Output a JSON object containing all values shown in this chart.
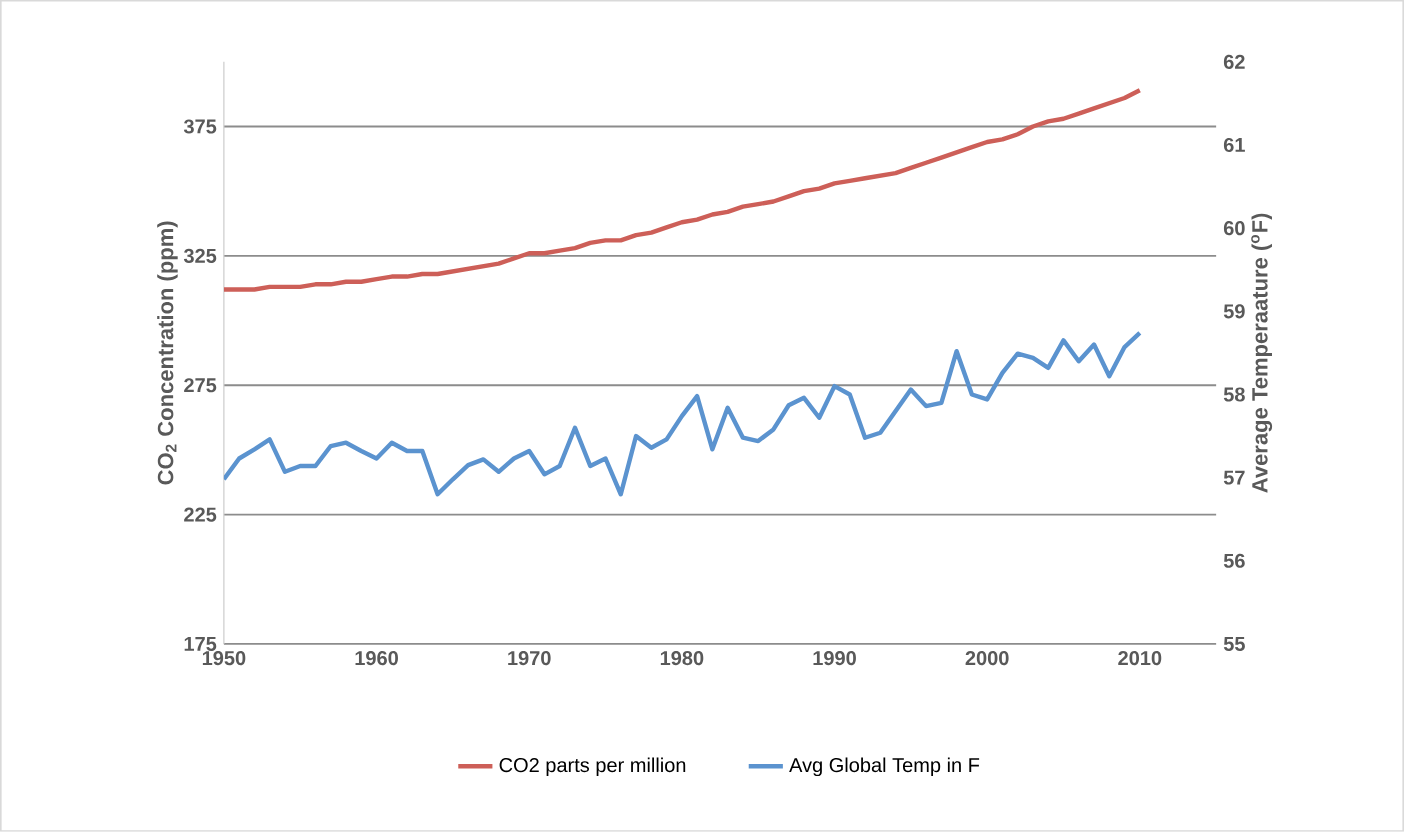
{
  "chart_data": {
    "type": "line",
    "ylabel": "CO$_{2}$ Concentration (ppm)",
    "y2label": "Average Temperaature ($^{o}$F)",
    "x": [
      1950,
      1951,
      1952,
      1953,
      1954,
      1955,
      1956,
      1957,
      1958,
      1959,
      1960,
      1961,
      1962,
      1963,
      1964,
      1965,
      1966,
      1967,
      1968,
      1969,
      1970,
      1971,
      1972,
      1973,
      1974,
      1975,
      1976,
      1977,
      1978,
      1979,
      1980,
      1981,
      1982,
      1983,
      1984,
      1985,
      1986,
      1987,
      1988,
      1989,
      1990,
      1991,
      1992,
      1993,
      1994,
      1995,
      1996,
      1997,
      1998,
      1999,
      2000,
      2001,
      2002,
      2003,
      2004,
      2005,
      2006,
      2007,
      2008,
      2009,
      2010
    ],
    "series": [
      {
        "name": "CO2 parts per million",
        "color": "#cd5f58",
        "values": [
          312,
          312,
          312,
          313,
          313,
          313,
          314,
          314,
          315,
          315,
          316,
          317,
          317,
          318,
          318,
          319,
          320,
          321,
          322,
          324,
          326,
          326,
          327,
          328,
          330,
          331,
          331,
          333,
          334,
          336,
          338,
          339,
          341,
          342,
          344,
          345,
          346,
          348,
          350,
          351,
          353,
          354,
          355,
          356,
          357,
          359,
          361,
          363,
          365,
          367,
          369,
          370,
          372,
          375,
          377,
          378,
          380,
          382,
          384,
          386,
          389
        ]
      },
      {
        "name": "Avg Global Temp in F",
        "color": "#5b93cf",
        "axis": "y2",
        "values": [
          56.98,
          57.23,
          57.34,
          57.46,
          57.07,
          57.14,
          57.14,
          57.38,
          57.42,
          57.32,
          57.23,
          57.42,
          57.32,
          57.32,
          56.8,
          56.98,
          57.15,
          57.22,
          57.07,
          57.23,
          57.32,
          57.04,
          57.14,
          57.6,
          57.14,
          57.23,
          56.8,
          57.5,
          57.36,
          57.46,
          57.74,
          57.98,
          57.34,
          57.84,
          57.48,
          57.44,
          57.58,
          57.87,
          57.96,
          57.72,
          58.1,
          58.0,
          57.48,
          57.54,
          57.8,
          58.06,
          57.86,
          57.9,
          58.52,
          58.0,
          57.94,
          58.26,
          58.49,
          58.44,
          58.32,
          58.65,
          58.4,
          58.6,
          58.22,
          58.57,
          58.74
        ]
      }
    ],
    "xlim": [
      1950,
      2015
    ],
    "xticks": [
      1950,
      1960,
      1970,
      1980,
      1990,
      2000,
      2010
    ],
    "ylim": [
      175,
      400
    ],
    "yticks": [
      175,
      225,
      275,
      325,
      375
    ],
    "y2lim": [
      55,
      62
    ],
    "y2ticks": [
      55,
      56,
      57,
      58,
      59,
      60,
      61,
      62
    ],
    "grid": "y",
    "legend": "bottom",
    "marker": "none",
    "line_style": "solid"
  }
}
